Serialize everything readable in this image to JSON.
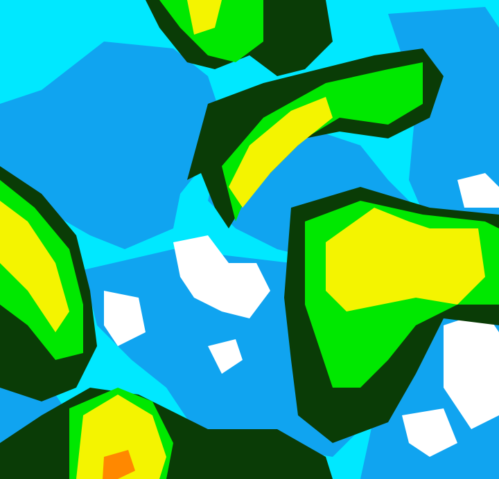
{
  "map": {
    "palette": {
      "cyan": "#00e8ff",
      "blue": "#10a4f0",
      "white": "#ffffff",
      "dark_green": "#0a3c06",
      "green": "#00e800",
      "light_green": "#90f000",
      "yellow": "#f4f400",
      "orange": "#ff8800"
    }
  }
}
